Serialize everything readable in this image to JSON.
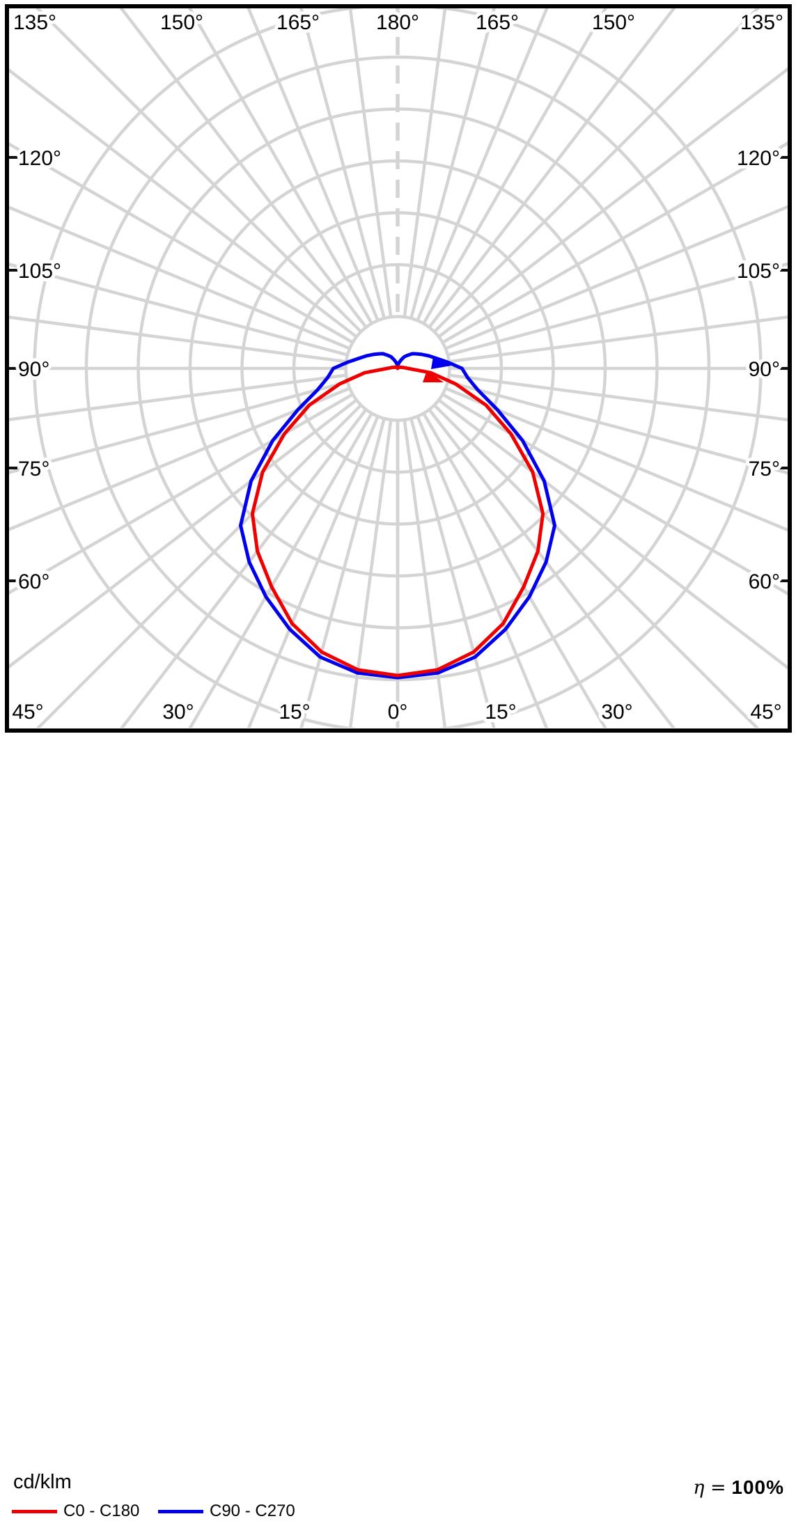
{
  "unit_label": "cd/klm",
  "efficiency": {
    "eta_prefix": "η =",
    "value": "100%"
  },
  "legend": {
    "items": [
      {
        "label": "C0 - C180",
        "color": "#ee0000"
      },
      {
        "label": "C90 - C270",
        "color": "#0000ee"
      }
    ]
  },
  "chart_data": {
    "type": "polar",
    "subtype": "photometric-luminous-intensity-distribution",
    "unit": "cd/klm",
    "grid": {
      "ring_count": 7,
      "ring_step_cd_klm": 50,
      "ring_values": [
        50,
        100,
        150,
        200,
        250,
        300,
        350
      ],
      "minor_angle_step_deg": 7.5,
      "label_angle_step_deg": 15,
      "dashed_axis_deg": 180,
      "grid_color": "#d4d4d4"
    },
    "angle_labels": {
      "top": [
        "135°",
        "150°",
        "165°",
        "180°",
        "165°",
        "150°",
        "135°"
      ],
      "left": [
        "120°",
        "105°",
        "90°",
        "75°",
        "60°"
      ],
      "right": [
        "120°",
        "105°",
        "90°",
        "75°",
        "60°"
      ],
      "bottom": [
        "45°",
        "30°",
        "15°",
        "0°",
        "15°",
        "30°",
        "45°"
      ]
    },
    "series": [
      {
        "name": "C0 - C180",
        "color": "#ee0000",
        "angles_deg": [
          0,
          7.5,
          15,
          22.5,
          30,
          37.5,
          45,
          52.5,
          60,
          67.5,
          75,
          82.5,
          90,
          97.5,
          105,
          112.5,
          120,
          127.5,
          135,
          142.5,
          150,
          157.5,
          165,
          172.5,
          180
        ],
        "values_cd_klm": [
          296,
          293,
          283,
          266,
          243,
          222,
          198,
          164,
          126,
          92,
          58,
          32,
          10,
          6,
          4,
          3,
          2,
          2,
          2,
          1,
          1,
          1,
          1,
          0,
          0
        ]
      },
      {
        "name": "C90 - C270",
        "color": "#0000ee",
        "angles_deg": [
          0,
          7.5,
          15,
          22.5,
          30,
          37.5,
          45,
          52.5,
          60,
          67.5,
          75,
          82.5,
          90,
          97.5,
          105,
          112.5,
          120,
          127.5,
          135,
          142.5,
          150,
          157.5,
          165,
          172.5,
          180
        ],
        "values_cd_klm": [
          298,
          296,
          288,
          272,
          254,
          235,
          214,
          178,
          139,
          104,
          80,
          68,
          62,
          48,
          38,
          32,
          27,
          23,
          20,
          16,
          13,
          9,
          6,
          4,
          2
        ]
      }
    ]
  }
}
